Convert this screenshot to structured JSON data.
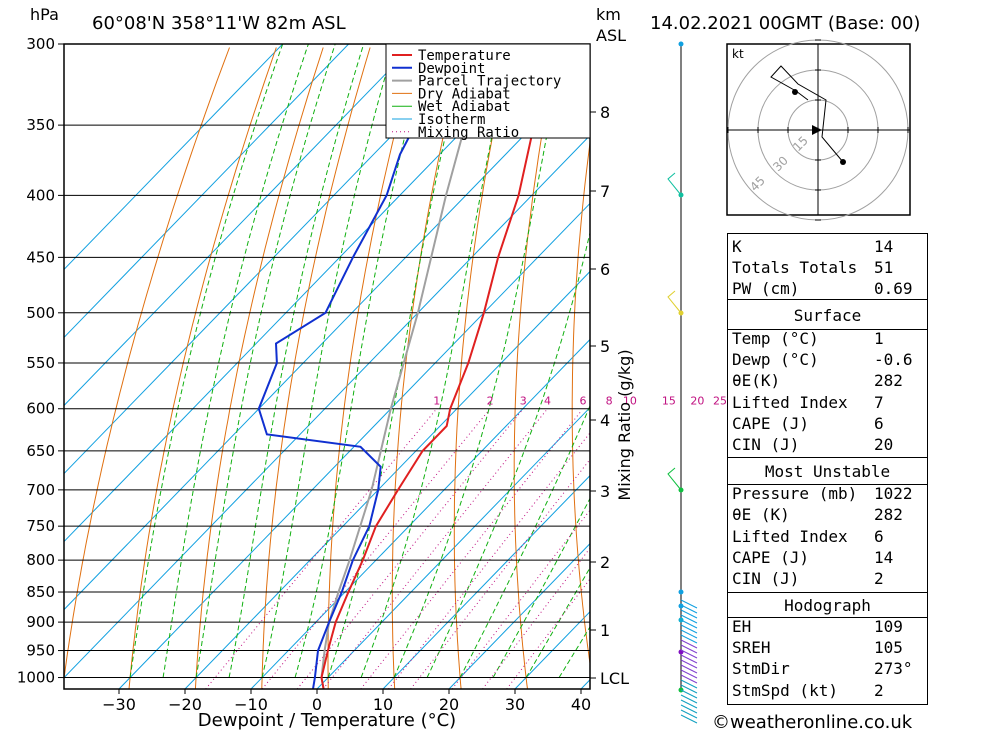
{
  "header": {
    "hpa_unit": "hPa",
    "location": "60°08'N  358°11'W  82m  ASL",
    "km_unit": "km",
    "asl_unit": "ASL",
    "date": "14.02.2021  00GMT  (Base: 00)"
  },
  "chart_data": {
    "type": "skew-t",
    "xlabel": "Dewpoint / Temperature (°C)",
    "ylabel_right": "Mixing Ratio (g/kg)",
    "x_ticks": [
      -30,
      -20,
      -10,
      0,
      10,
      20,
      30,
      40
    ],
    "x_range": [
      -40,
      40
    ],
    "pressure_levels": [
      300,
      350,
      400,
      450,
      500,
      550,
      600,
      650,
      700,
      750,
      800,
      850,
      900,
      950,
      1000
    ],
    "km_ticks": [
      "8",
      "7",
      "6",
      "5",
      "4",
      "3",
      "2",
      "1",
      "LCL"
    ],
    "mixing_ratio_labels": [
      "1",
      "2",
      "3",
      "4",
      "6",
      "8",
      "10",
      "15",
      "20",
      "25"
    ],
    "legend": [
      "Temperature",
      "Dewpoint",
      "Parcel Trajectory",
      "Dry Adiabat",
      "Wet Adiabat",
      "Isotherm",
      "Mixing Ratio"
    ],
    "colors": {
      "temperature": "#e02020",
      "dewpoint": "#1030d0",
      "parcel": "#a0a0a0",
      "dry_adiabat": "#e07010",
      "wet_adiabat": "#10b010",
      "isotherm": "#10a0e0",
      "mixing_ratio": "#c01080"
    },
    "temperature_profile": [
      {
        "p": 1022,
        "t": 1
      },
      {
        "p": 1000,
        "t": -1
      },
      {
        "p": 950,
        "t": -4
      },
      {
        "p": 900,
        "t": -7
      },
      {
        "p": 850,
        "t": -9.5
      },
      {
        "p": 800,
        "t": -12
      },
      {
        "p": 750,
        "t": -15
      },
      {
        "p": 700,
        "t": -17
      },
      {
        "p": 650,
        "t": -19
      },
      {
        "p": 620,
        "t": -19
      },
      {
        "p": 600,
        "t": -21
      },
      {
        "p": 550,
        "t": -25
      },
      {
        "p": 500,
        "t": -30
      },
      {
        "p": 450,
        "t": -36
      },
      {
        "p": 400,
        "t": -42
      },
      {
        "p": 350,
        "t": -50
      },
      {
        "p": 300,
        "t": -57
      }
    ],
    "dewpoint_profile": [
      {
        "p": 1022,
        "t": -0.6
      },
      {
        "p": 1000,
        "t": -2
      },
      {
        "p": 950,
        "t": -5.5
      },
      {
        "p": 900,
        "t": -8
      },
      {
        "p": 850,
        "t": -10.5
      },
      {
        "p": 800,
        "t": -13.5
      },
      {
        "p": 750,
        "t": -16
      },
      {
        "p": 700,
        "t": -20
      },
      {
        "p": 670,
        "t": -23
      },
      {
        "p": 645,
        "t": -29
      },
      {
        "p": 630,
        "t": -45
      },
      {
        "p": 600,
        "t": -50
      },
      {
        "p": 550,
        "t": -54
      },
      {
        "p": 530,
        "t": -57
      },
      {
        "p": 500,
        "t": -54
      },
      {
        "p": 450,
        "t": -58
      },
      {
        "p": 400,
        "t": -62
      },
      {
        "p": 370,
        "t": -66
      },
      {
        "p": 350,
        "t": -68
      },
      {
        "p": 330,
        "t": -64
      },
      {
        "p": 315,
        "t": -72
      },
      {
        "p": 300,
        "t": -72
      }
    ],
    "parcel_profile": [
      {
        "p": 1022,
        "t": 1
      },
      {
        "p": 1000,
        "t": -1
      },
      {
        "p": 950,
        "t": -4.5
      },
      {
        "p": 900,
        "t": -8
      },
      {
        "p": 850,
        "t": -11
      },
      {
        "p": 800,
        "t": -14
      },
      {
        "p": 700,
        "t": -21
      },
      {
        "p": 600,
        "t": -30
      },
      {
        "p": 500,
        "t": -40
      },
      {
        "p": 400,
        "t": -53
      },
      {
        "p": 300,
        "t": -69
      }
    ]
  },
  "legend_items": [
    {
      "label": "Temperature"
    },
    {
      "label": "Dewpoint"
    },
    {
      "label": "Parcel Trajectory"
    },
    {
      "label": "Dry Adiabat"
    },
    {
      "label": "Wet Adiabat"
    },
    {
      "label": "Isotherm"
    },
    {
      "label": "Mixing Ratio"
    }
  ],
  "hodograph": {
    "unit": "kt",
    "rings": [
      "15",
      "30",
      "45"
    ]
  },
  "indices": {
    "k_label": "K",
    "k": "14",
    "tt_label": "Totals Totals",
    "tt": "51",
    "pw_label": "PW (cm)",
    "pw": "0.69"
  },
  "surface": {
    "title": "Surface",
    "temp_label": "Temp (°C)",
    "temp": "1",
    "dewp_label": "Dewp (°C)",
    "dewp": "-0.6",
    "theta_label": "θE(K)",
    "theta": "282",
    "li_label": "Lifted Index",
    "li": "7",
    "cape_label": "CAPE (J)",
    "cape": "6",
    "cin_label": "CIN (J)",
    "cin": "20"
  },
  "most_unstable": {
    "title": "Most Unstable",
    "pres_label": "Pressure (mb)",
    "pres": "1022",
    "theta_label": "θE (K)",
    "theta": "282",
    "li_label": "Lifted Index",
    "li": "6",
    "cape_label": "CAPE (J)",
    "cape": "14",
    "cin_label": "CIN (J)",
    "cin": "2"
  },
  "hodo_stats": {
    "title": "Hodograph",
    "eh_label": "EH",
    "eh": "109",
    "sreh_label": "SREH",
    "sreh": "105",
    "dir_label": "StmDir",
    "dir": "273°",
    "spd_label": "StmSpd (kt)",
    "spd": "2"
  },
  "footer": {
    "copyright": "©weatheronline.co.uk"
  }
}
